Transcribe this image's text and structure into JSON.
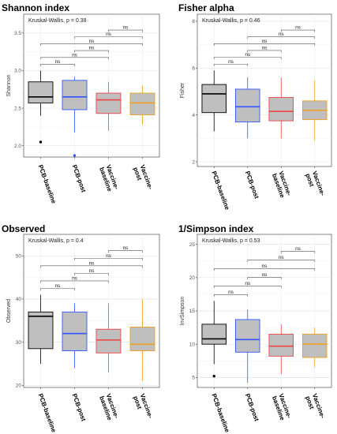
{
  "chart_data": [
    {
      "type": "box",
      "title": "Shannon index",
      "ylabel": "Shannon",
      "test": "Kruskal-Wallis, p = 0.38",
      "ylim": [
        1.85,
        3.75
      ],
      "yticks": [
        "2.0",
        "2.5",
        "3.0",
        "3.5"
      ],
      "yticks_values": [
        2.0,
        2.5,
        3.0,
        3.5
      ],
      "categories": [
        "PCB-baseline",
        "PCB-post",
        "Vaccine-\nbaseline",
        "Vaccine-\npost"
      ],
      "boxes": [
        {
          "color": "#000000",
          "whislo": 2.4,
          "q1": 2.57,
          "med": 2.65,
          "q3": 2.85,
          "whishi": 3.0,
          "outliers": [
            2.05
          ]
        },
        {
          "color": "#3355ff",
          "whislo": 2.18,
          "q1": 2.48,
          "med": 2.65,
          "q3": 2.87,
          "whishi": 2.92,
          "outliers": [
            1.87
          ]
        },
        {
          "color": "#ee4444",
          "whislo": 2.2,
          "q1": 2.43,
          "med": 2.61,
          "q3": 2.7,
          "whishi": 2.85,
          "outliers": []
        },
        {
          "color": "#f0a020",
          "whislo": 2.28,
          "q1": 2.41,
          "med": 2.57,
          "q3": 2.7,
          "whishi": 2.8,
          "outliers": []
        }
      ],
      "brackets": [
        {
          "from": 1,
          "to": 2,
          "label": "ns"
        },
        {
          "from": 1,
          "to": 3,
          "label": "ns"
        },
        {
          "from": 2,
          "to": 3,
          "label": "ns"
        },
        {
          "from": 1,
          "to": 4,
          "label": "ns"
        },
        {
          "from": 2,
          "to": 4,
          "label": "ns"
        },
        {
          "from": 3,
          "to": 4,
          "label": "ns"
        }
      ]
    },
    {
      "type": "box",
      "title": "Fisher alpha",
      "ylabel": "Fisher",
      "test": "Kruskal-Wallis, p = 0.46",
      "ylim": [
        1.8,
        8.3
      ],
      "yticks": [
        "2",
        "4",
        "6",
        "8"
      ],
      "yticks_values": [
        2,
        4,
        6,
        8
      ],
      "categories": [
        "PCB-baseline",
        "PCB-post",
        "Vaccine-\nbaseline",
        "Vaccine-\npost"
      ],
      "boxes": [
        {
          "color": "#000000",
          "whislo": 3.3,
          "q1": 4.1,
          "med": 4.9,
          "q3": 5.3,
          "whishi": 5.9,
          "outliers": []
        },
        {
          "color": "#3355ff",
          "whislo": 3.0,
          "q1": 3.7,
          "med": 4.35,
          "q3": 5.1,
          "whishi": 5.6,
          "outliers": []
        },
        {
          "color": "#ee4444",
          "whislo": 3.0,
          "q1": 3.75,
          "med": 4.15,
          "q3": 4.75,
          "whishi": 5.6,
          "outliers": []
        },
        {
          "color": "#f0a020",
          "whislo": 2.9,
          "q1": 3.8,
          "med": 4.2,
          "q3": 4.6,
          "whishi": 5.5,
          "outliers": []
        }
      ],
      "brackets": [
        {
          "from": 1,
          "to": 2,
          "label": "ns"
        },
        {
          "from": 1,
          "to": 3,
          "label": "ns"
        },
        {
          "from": 2,
          "to": 3,
          "label": "ns"
        },
        {
          "from": 1,
          "to": 4,
          "label": "ns"
        },
        {
          "from": 2,
          "to": 4,
          "label": "ns"
        },
        {
          "from": 3,
          "to": 4,
          "label": "ns"
        }
      ]
    },
    {
      "type": "box",
      "title": "Observed",
      "ylabel": "Observed",
      "test": "Kruskal-Wallis, p = 0.4",
      "ylim": [
        19.5,
        55
      ],
      "yticks": [
        "20",
        "30",
        "40",
        "50"
      ],
      "yticks_values": [
        20,
        30,
        40,
        50
      ],
      "categories": [
        "PCB-baseline",
        "PCB-post",
        "Vaccine-\nbaseline",
        "Vaccine-\npost"
      ],
      "boxes": [
        {
          "color": "#000000",
          "whislo": 25,
          "q1": 28.5,
          "med": 36,
          "q3": 37,
          "whishi": 41,
          "outliers": []
        },
        {
          "color": "#3355ff",
          "whislo": 24,
          "q1": 28,
          "med": 32,
          "q3": 37,
          "whishi": 39,
          "outliers": []
        },
        {
          "color": "#ee4444",
          "whislo": 23,
          "q1": 27.5,
          "med": 30.5,
          "q3": 33,
          "whishi": 39,
          "outliers": []
        },
        {
          "color": "#f0a020",
          "whislo": 21,
          "q1": 28,
          "med": 29.5,
          "q3": 33.5,
          "whishi": 40,
          "outliers": []
        }
      ],
      "brackets": [
        {
          "from": 1,
          "to": 2,
          "label": "ns"
        },
        {
          "from": 1,
          "to": 3,
          "label": "ns"
        },
        {
          "from": 2,
          "to": 3,
          "label": "ns"
        },
        {
          "from": 1,
          "to": 4,
          "label": "ns"
        },
        {
          "from": 2,
          "to": 4,
          "label": "ns"
        },
        {
          "from": 3,
          "to": 4,
          "label": "ns"
        }
      ]
    },
    {
      "type": "box",
      "title": "1/Simpson index",
      "ylabel": "InvSimpson",
      "test": "Kruskal-Wallis, p = 0.53",
      "ylim": [
        3.5,
        26.5
      ],
      "yticks": [
        "5",
        "10",
        "15",
        "20",
        "25"
      ],
      "yticks_values": [
        5,
        10,
        15,
        20,
        25
      ],
      "categories": [
        "PCB-baseline",
        "PCB-post",
        "Vaccine-\nbaseline",
        "Vaccine-\npost"
      ],
      "boxes": [
        {
          "color": "#000000",
          "whislo": 7.0,
          "q1": 10.0,
          "med": 10.8,
          "q3": 13.0,
          "whishi": 16.5,
          "outliers": [
            5.2
          ]
        },
        {
          "color": "#3355ff",
          "whislo": 4.2,
          "q1": 8.8,
          "med": 10.7,
          "q3": 13.7,
          "whishi": 15.2,
          "outliers": []
        },
        {
          "color": "#ee4444",
          "whislo": 5.5,
          "q1": 8.2,
          "med": 9.7,
          "q3": 11.5,
          "whishi": 13.0,
          "outliers": []
        },
        {
          "color": "#f0a020",
          "whislo": 6.5,
          "q1": 8.0,
          "med": 10.0,
          "q3": 11.5,
          "whishi": 12.5,
          "outliers": []
        }
      ],
      "brackets": [
        {
          "from": 1,
          "to": 2,
          "label": "ns"
        },
        {
          "from": 1,
          "to": 3,
          "label": "ns"
        },
        {
          "from": 2,
          "to": 3,
          "label": "ns"
        },
        {
          "from": 1,
          "to": 4,
          "label": "ns"
        },
        {
          "from": 2,
          "to": 4,
          "label": "ns"
        },
        {
          "from": 3,
          "to": 4,
          "label": "ns"
        }
      ]
    }
  ]
}
